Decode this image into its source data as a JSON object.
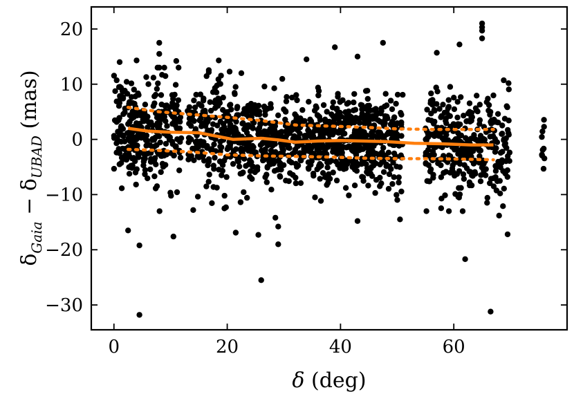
{
  "chart_data": {
    "type": "scatter",
    "xlabel": "δ (deg)",
    "ylabel_parts": {
      "delta1": "δ",
      "sub1": "Gaia",
      "minus": " − ",
      "delta2": "δ",
      "sub2": "UBAD",
      "unit": " (mas)"
    },
    "xlim": [
      -4,
      80
    ],
    "ylim": [
      -34.5,
      24
    ],
    "x_ticks": [
      0,
      20,
      40,
      60
    ],
    "x_tick_labels": [
      "0",
      "20",
      "40",
      "60"
    ],
    "y_ticks": [
      -30,
      -20,
      -10,
      0,
      10,
      20
    ],
    "y_tick_labels": [
      "−30",
      "−20",
      "−10",
      "0",
      "10",
      "20"
    ],
    "grid": false,
    "point_color": "#000000",
    "line_color": "#ff7f0e",
    "median_line": {
      "x": [
        2.5,
        6,
        10,
        15,
        21,
        26,
        29,
        32,
        36,
        40,
        44,
        48,
        53,
        58,
        63,
        67
      ],
      "y": [
        2.0,
        1.5,
        1.3,
        1.2,
        0.0,
        0.2,
        -0.1,
        -0.5,
        -0.3,
        -0.2,
        -0.3,
        -0.4,
        -0.7,
        -0.8,
        -1.0,
        -1.0
      ]
    },
    "upper_band": {
      "x": [
        2.5,
        8,
        14,
        20,
        26,
        32,
        38,
        44,
        50,
        56,
        62,
        67
      ],
      "y": [
        5.8,
        5.0,
        4.5,
        4.0,
        3.4,
        2.6,
        2.4,
        2.2,
        1.9,
        1.8,
        1.8,
        1.8
      ]
    },
    "lower_band": {
      "x": [
        2.5,
        8,
        14,
        20,
        26,
        32,
        38,
        44,
        50,
        56,
        62,
        67
      ],
      "y": [
        -1.8,
        -2.0,
        -2.3,
        -2.8,
        -3.0,
        -3.1,
        -3.2,
        -3.4,
        -3.5,
        -3.5,
        -3.6,
        -3.7
      ]
    },
    "clusters": [
      {
        "x_min": 0,
        "x_max": 4,
        "count": 120,
        "spread": 4.5,
        "center": 2.0
      },
      {
        "x_min": 4,
        "x_max": 8,
        "count": 100,
        "spread": 4.5,
        "center": 1.5
      },
      {
        "x_min": 8,
        "x_max": 12,
        "count": 90,
        "spread": 4.5,
        "center": 1.3
      },
      {
        "x_min": 13,
        "x_max": 16,
        "count": 60,
        "spread": 4.0,
        "center": 1.2
      },
      {
        "x_min": 16,
        "x_max": 20,
        "count": 100,
        "spread": 5.0,
        "center": 0.5
      },
      {
        "x_min": 20,
        "x_max": 24,
        "count": 110,
        "spread": 4.0,
        "center": 0.0
      },
      {
        "x_min": 24,
        "x_max": 29,
        "count": 130,
        "spread": 3.8,
        "center": 0.1
      },
      {
        "x_min": 29,
        "x_max": 33,
        "count": 100,
        "spread": 3.6,
        "center": -0.4
      },
      {
        "x_min": 33,
        "x_max": 38,
        "count": 140,
        "spread": 3.8,
        "center": -0.3
      },
      {
        "x_min": 38,
        "x_max": 42,
        "count": 120,
        "spread": 3.8,
        "center": -0.2
      },
      {
        "x_min": 42,
        "x_max": 46,
        "count": 150,
        "spread": 4.0,
        "center": -0.3
      },
      {
        "x_min": 46,
        "x_max": 51,
        "count": 120,
        "spread": 4.0,
        "center": -0.5
      },
      {
        "x_min": 55,
        "x_max": 59,
        "count": 100,
        "spread": 4.5,
        "center": -0.7
      },
      {
        "x_min": 59,
        "x_max": 63,
        "count": 100,
        "spread": 4.5,
        "center": -0.9
      },
      {
        "x_min": 63,
        "x_max": 67,
        "count": 80,
        "spread": 4.5,
        "center": -1.0
      },
      {
        "x_min": 67,
        "x_max": 70,
        "count": 60,
        "spread": 4.5,
        "center": -1.5
      },
      {
        "x_min": 75.5,
        "x_max": 76,
        "count": 10,
        "spread": 4.0,
        "center": -3.0
      }
    ],
    "outliers": [
      {
        "x": 4.5,
        "y": -31.8
      },
      {
        "x": 4.5,
        "y": -19.2
      },
      {
        "x": 2.5,
        "y": -16.5
      },
      {
        "x": 10.5,
        "y": -17.6
      },
      {
        "x": 8,
        "y": 17.5
      },
      {
        "x": 8,
        "y": 15.5
      },
      {
        "x": 4,
        "y": 14.3
      },
      {
        "x": 1,
        "y": 14.0
      },
      {
        "x": 11,
        "y": 14.2
      },
      {
        "x": 21.5,
        "y": -16.9
      },
      {
        "x": 25.5,
        "y": -17.3
      },
      {
        "x": 26,
        "y": -25.5
      },
      {
        "x": 29,
        "y": -19.0
      },
      {
        "x": 29,
        "y": -15.8
      },
      {
        "x": 28.5,
        "y": -14.2
      },
      {
        "x": 18.5,
        "y": 14.3
      },
      {
        "x": 22.5,
        "y": 12.0
      },
      {
        "x": 34,
        "y": 14.5
      },
      {
        "x": 39,
        "y": 16.7
      },
      {
        "x": 43,
        "y": 15.0
      },
      {
        "x": 47.5,
        "y": 17.5
      },
      {
        "x": 43,
        "y": -14.8
      },
      {
        "x": 50.5,
        "y": -14.5
      },
      {
        "x": 57,
        "y": 15.7
      },
      {
        "x": 61,
        "y": 17.2
      },
      {
        "x": 62,
        "y": -21.7
      },
      {
        "x": 66.5,
        "y": -31.2
      },
      {
        "x": 65,
        "y": 21.0
      },
      {
        "x": 65,
        "y": 20.3
      },
      {
        "x": 65,
        "y": 19.7
      },
      {
        "x": 65,
        "y": 18.3
      },
      {
        "x": 68,
        "y": -13.8
      },
      {
        "x": 69.5,
        "y": -17.2
      },
      {
        "x": 14,
        "y": -12.8
      },
      {
        "x": 19.5,
        "y": -12.5
      },
      {
        "x": 35.5,
        "y": -10.5
      }
    ]
  }
}
